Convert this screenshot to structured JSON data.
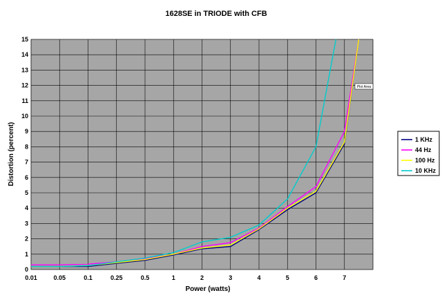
{
  "chart_data": {
    "type": "line",
    "title": "1628SE in TRIODE with CFB",
    "xlabel": "Power (watts)",
    "ylabel": "Distortion (percent)",
    "categories": [
      "0.01",
      "0.05",
      "0.1",
      "0.25",
      "0.5",
      "1",
      "2",
      "3",
      "4",
      "5",
      "6",
      "7"
    ],
    "ylim": [
      0,
      15
    ],
    "yticks": [
      0,
      1,
      2,
      3,
      4,
      5,
      6,
      7,
      8,
      9,
      10,
      11,
      12,
      13,
      14,
      15
    ],
    "grid": true,
    "plot_background": "#a6a6a6",
    "legend_position": "right",
    "annotation": "Plot Area",
    "series": [
      {
        "name": "1 KHz",
        "color": "#000080",
        "points": [
          [
            0,
            0.2
          ],
          [
            1,
            0.2
          ],
          [
            2,
            0.2
          ],
          [
            3,
            0.4
          ],
          [
            4,
            0.6
          ],
          [
            5,
            0.95
          ],
          [
            6,
            1.35
          ],
          [
            7,
            1.5
          ],
          [
            8,
            2.6
          ],
          [
            9,
            3.9
          ],
          [
            10,
            5.0
          ],
          [
            11,
            8.2
          ],
          [
            11.5,
            15
          ]
        ]
      },
      {
        "name": "44 Hz",
        "color": "#ff00ff",
        "points": [
          [
            0,
            0.3
          ],
          [
            1,
            0.3
          ],
          [
            2,
            0.35
          ],
          [
            3,
            0.5
          ],
          [
            4,
            0.7
          ],
          [
            5,
            1.0
          ],
          [
            6,
            1.5
          ],
          [
            7,
            1.75
          ],
          [
            8,
            2.7
          ],
          [
            9,
            4.1
          ],
          [
            10,
            5.4
          ],
          [
            11,
            9.0
          ],
          [
            11.5,
            15
          ]
        ]
      },
      {
        "name": "100 Hz",
        "color": "#ffff00",
        "points": [
          [
            0,
            0.2
          ],
          [
            1,
            0.2
          ],
          [
            2,
            0.25
          ],
          [
            3,
            0.45
          ],
          [
            4,
            0.65
          ],
          [
            5,
            1.0
          ],
          [
            6,
            1.4
          ],
          [
            7,
            1.6
          ],
          [
            8,
            2.65
          ],
          [
            9,
            4.0
          ],
          [
            10,
            5.1
          ],
          [
            11,
            8.3
          ],
          [
            11.5,
            15
          ]
        ]
      },
      {
        "name": "10 KHz",
        "color": "#00cccc",
        "points": [
          [
            0,
            0.2
          ],
          [
            1,
            0.2
          ],
          [
            2,
            0.25
          ],
          [
            3,
            0.5
          ],
          [
            4,
            0.75
          ],
          [
            5,
            1.1
          ],
          [
            6,
            1.8
          ],
          [
            7,
            2.1
          ],
          [
            8,
            2.9
          ],
          [
            9,
            4.6
          ],
          [
            10,
            8.0
          ],
          [
            10.7,
            15
          ]
        ]
      }
    ]
  }
}
